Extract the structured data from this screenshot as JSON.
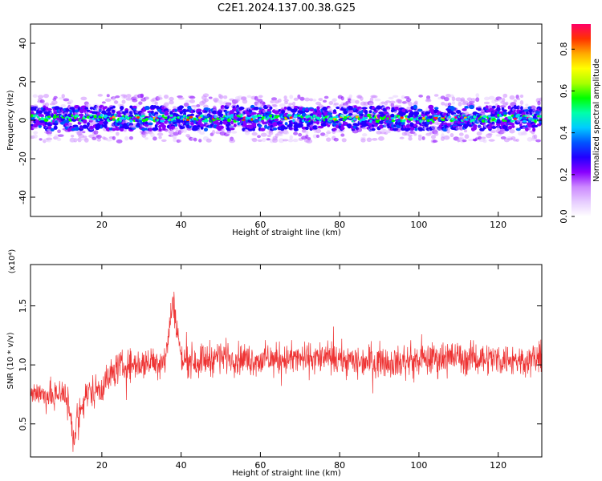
{
  "title": "C2E1.2024.137.00.38.G25",
  "colors": {
    "snr_line": "#ee3333",
    "background": "#ffffff",
    "colormap": [
      "#ffffff",
      "#e6ccff",
      "#cc88ff",
      "#8800ff",
      "#2200ff",
      "#0055ff",
      "#00ccff",
      "#00ffaa",
      "#00ff00",
      "#aaff00",
      "#ffff00",
      "#ffaa00",
      "#ff3300",
      "#ff0066"
    ]
  },
  "chart_data": [
    {
      "type": "heatmap",
      "xlabel": "Height of straight line (km)",
      "ylabel": "Frequency (Hz)",
      "xlim": [
        2,
        131
      ],
      "ylim": [
        -50,
        50
      ],
      "xticks": [
        20,
        40,
        60,
        80,
        100,
        120
      ],
      "yticks": [
        -40,
        -20,
        0,
        20,
        40
      ],
      "xtick_labels": [
        "20",
        "40",
        "60",
        "80",
        "100",
        "120"
      ],
      "ytick_labels": [
        "-40",
        "-20",
        "0",
        "20",
        "40"
      ],
      "band_center_hz": 1,
      "band_core_halfwidth_hz": 4,
      "band_outer_halfwidth_hz": 12,
      "colorbar": {
        "label": "Normalized spectral amplitude",
        "range": [
          0,
          0.92
        ],
        "ticks": [
          0.0,
          0.2,
          0.4,
          0.6,
          0.8
        ],
        "tick_labels": [
          "0.0",
          "0.2",
          "0.4",
          "0.6",
          "0.8"
        ]
      }
    },
    {
      "type": "line",
      "xlabel": "Height of straight line (km)",
      "ylabel": "SNR (10 * v/v)",
      "scale_label": "(x10⁴)",
      "xlim": [
        2,
        131
      ],
      "ylim": [
        0.22,
        1.85
      ],
      "xticks": [
        20,
        40,
        60,
        80,
        100,
        120
      ],
      "yticks": [
        0.5,
        1.0,
        1.5
      ],
      "xtick_labels": [
        "20",
        "40",
        "60",
        "80",
        "100",
        "120"
      ],
      "ytick_labels": [
        "0.5",
        "1.0",
        "1.5"
      ],
      "series": [
        {
          "x": [
            2,
            5,
            8,
            10,
            12,
            13,
            14,
            16,
            20,
            24,
            28,
            32,
            36,
            38,
            40,
            44,
            48,
            50,
            55,
            60,
            66,
            70,
            76,
            80,
            85,
            90,
            95,
            100,
            104,
            108,
            112,
            116,
            120,
            125,
            131
          ],
          "y": [
            0.78,
            0.75,
            0.72,
            0.8,
            0.6,
            0.35,
            0.55,
            0.75,
            0.82,
            0.98,
            1.0,
            1.02,
            1.05,
            1.55,
            1.05,
            1.03,
            1.06,
            1.08,
            1.05,
            1.04,
            1.05,
            1.05,
            1.06,
            1.04,
            1.03,
            1.04,
            1.02,
            1.04,
            1.05,
            1.07,
            1.05,
            1.06,
            1.05,
            1.04,
            1.05
          ],
          "noise": [
            0.15,
            0.18,
            0.2,
            0.22,
            0.25,
            0.2,
            0.22,
            0.2,
            0.22,
            0.2,
            0.2,
            0.2,
            0.21,
            0.2,
            0.2,
            0.21,
            0.22,
            0.2,
            0.2,
            0.2,
            0.2,
            0.2,
            0.2,
            0.2,
            0.2,
            0.2,
            0.2,
            0.2,
            0.21,
            0.21,
            0.2,
            0.2,
            0.2,
            0.2,
            0.2
          ]
        }
      ]
    }
  ]
}
